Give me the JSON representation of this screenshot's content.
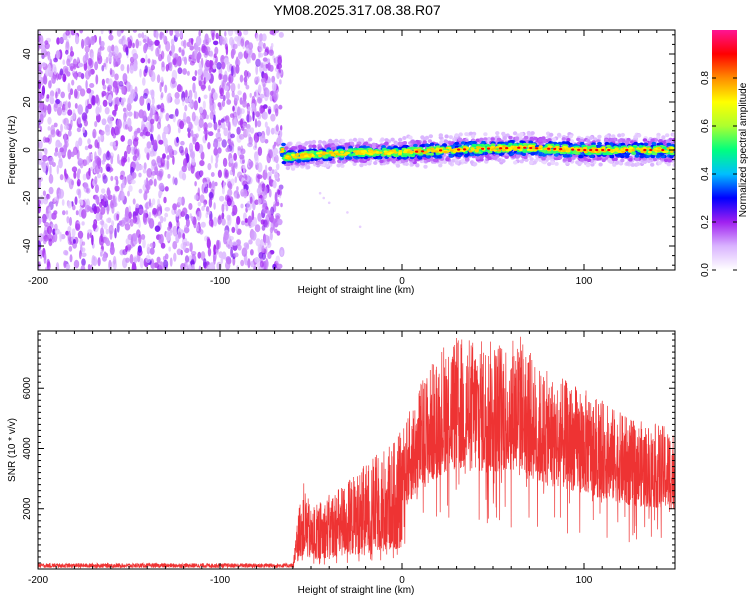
{
  "title": "YM08.2025.317.08.38.R07",
  "chart_data": [
    {
      "type": "heatmap",
      "name": "spectrogram",
      "xlabel": "Height of straight line (km)",
      "ylabel": "Frequency (Hz)",
      "xlim": [
        -200,
        150
      ],
      "ylim": [
        -50,
        50
      ],
      "xticks": [
        -200,
        -100,
        0,
        100
      ],
      "yticks": [
        -40,
        -20,
        0,
        20,
        40
      ],
      "colorbar": {
        "label": "Normalized spectral amplitude",
        "range": [
          0,
          1
        ],
        "ticks": [
          0.0,
          0.2,
          0.4,
          0.6,
          0.8
        ],
        "tick_labels": [
          "0.0",
          "0.2",
          "0.4",
          "0.6",
          "0.8"
        ],
        "colors": [
          "#ffffff",
          "#d9b3ff",
          "#a020f0",
          "#0000ff",
          "#00bfff",
          "#00ff7f",
          "#adff2f",
          "#ffff00",
          "#ff8c00",
          "#ff0000",
          "#ff1493"
        ]
      },
      "noise_region_x": [
        -200,
        -66
      ],
      "noise_amplitude_typical": 0.15,
      "signal_region_x": [
        -66,
        150
      ],
      "signal_center_freq": [
        {
          "x": -65,
          "f": -3
        },
        {
          "x": -50,
          "f": -2
        },
        {
          "x": -25,
          "f": -1
        },
        {
          "x": 0,
          "f": -1
        },
        {
          "x": 25,
          "f": 0
        },
        {
          "x": 65,
          "f": 1
        },
        {
          "x": 100,
          "f": 0
        },
        {
          "x": 150,
          "f": 0
        }
      ],
      "signal_peak_amplitude": 0.9
    },
    {
      "type": "line",
      "name": "snr",
      "xlabel": "Height of straight line (km)",
      "ylabel": "SNR (10 * v/v)",
      "xlim": [
        -200,
        150
      ],
      "ylim": [
        0,
        7900
      ],
      "xticks": [
        -200,
        -100,
        0,
        100
      ],
      "yticks": [
        2000,
        4000,
        6000
      ],
      "color": "#ee3333",
      "envelope": [
        {
          "x": -200,
          "y": 120
        },
        {
          "x": -60,
          "y": 120
        },
        {
          "x": -55,
          "y": 3100
        },
        {
          "x": -50,
          "y": 2000
        },
        {
          "x": -25,
          "y": 3200
        },
        {
          "x": 0,
          "y": 4600
        },
        {
          "x": 10,
          "y": 6200
        },
        {
          "x": 25,
          "y": 7800
        },
        {
          "x": 50,
          "y": 7600
        },
        {
          "x": 65,
          "y": 7900
        },
        {
          "x": 75,
          "y": 6700
        },
        {
          "x": 100,
          "y": 6000
        },
        {
          "x": 125,
          "y": 5000
        },
        {
          "x": 150,
          "y": 4700
        }
      ]
    }
  ]
}
